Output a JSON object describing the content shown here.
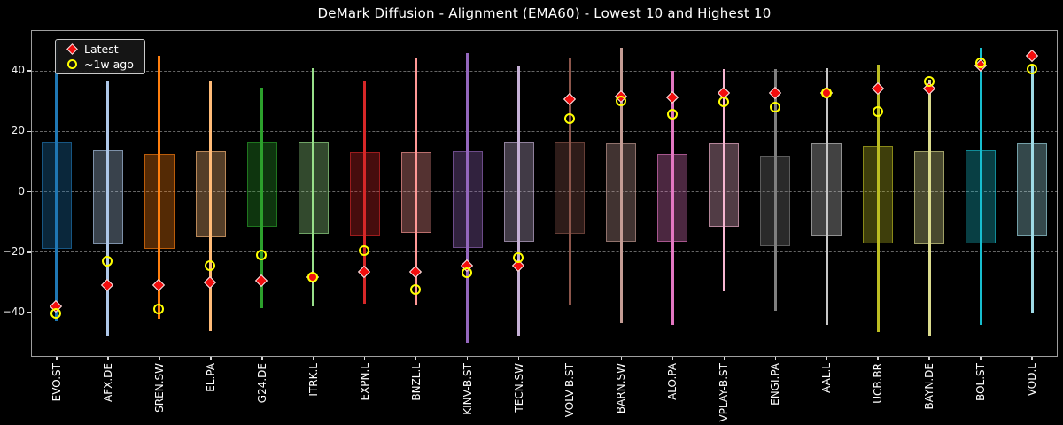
{
  "chart_data": {
    "type": "bar",
    "subtype": "range-box-whisker-with-point-markers",
    "title": "DeMark Diffusion - Alignment (EMA60) - Lowest 10 and Highest 10",
    "categories": [
      "EVO.ST",
      "AFX.DE",
      "SREN.SW",
      "EL.PA",
      "G24.DE",
      "ITRK.L",
      "EXPN.L",
      "BNZL.L",
      "KINV-B.ST",
      "TECN.SW",
      "VOLV-B.ST",
      "BARN.SW",
      "ALO.PA",
      "VPLAY-B.ST",
      "ENGI.PA",
      "AAL.L",
      "UCB.BR",
      "BAYN.DE",
      "BOL.ST",
      "VOD.L"
    ],
    "series": [
      {
        "name": "whisker_high",
        "values": [
          50,
          36.5,
          45,
          36.5,
          34.5,
          41,
          36.5,
          44,
          46,
          41.5,
          44.5,
          47.5,
          40,
          40.5,
          40.5,
          41,
          42,
          37,
          47.5,
          42
        ]
      },
      {
        "name": "whisker_low",
        "values": [
          -42.5,
          -47.5,
          -42,
          -46,
          -38.5,
          -38,
          -37,
          -37.5,
          -50,
          -48,
          -37.5,
          -43.5,
          -44,
          -33,
          -39.5,
          -44,
          -46.5,
          -47.5,
          -44,
          -40
        ]
      },
      {
        "name": "box_top",
        "values": [
          16.5,
          14,
          12.5,
          13.5,
          16.5,
          16.5,
          13,
          13,
          13.5,
          16.5,
          16.5,
          16,
          12.5,
          16,
          12,
          16,
          15,
          13.5,
          14,
          16
        ]
      },
      {
        "name": "box_bottom",
        "values": [
          -19,
          -17.5,
          -19,
          -15,
          -11.5,
          -14,
          -14.5,
          -13.5,
          -18.5,
          -16.5,
          -14,
          -16.5,
          -16.5,
          -11.5,
          -18,
          -14.5,
          -17,
          -17.5,
          -17,
          -14.5
        ]
      },
      {
        "name": "latest",
        "values": [
          -38,
          -31,
          -31,
          -30,
          -29.5,
          -28.5,
          -26.5,
          -26.5,
          -24.5,
          -24.5,
          30.5,
          31.5,
          31,
          32.5,
          32.5,
          32.5,
          34,
          34,
          41.5,
          45
        ]
      },
      {
        "name": "week_ago",
        "values": [
          -40.5,
          -23,
          -39,
          -24.5,
          -21,
          -28.5,
          -19.5,
          -32.5,
          -27,
          -22,
          24,
          30,
          25.5,
          29.5,
          28,
          32.5,
          26.5,
          36.5,
          42.5,
          40.5
        ]
      }
    ],
    "category_colors": [
      "#1f77b4",
      "#aec7e8",
      "#ff7f0e",
      "#ffbb78",
      "#2ca02c",
      "#98df8a",
      "#d62728",
      "#ff9896",
      "#9467bd",
      "#c5b0d5",
      "#8c564b",
      "#c49c94",
      "#e377c2",
      "#f7b6d2",
      "#7f7f7f",
      "#c7c7c7",
      "#bcbd22",
      "#dbdb8d",
      "#17becf",
      "#9edae5"
    ],
    "y_ticks": [
      40,
      20,
      0,
      -20,
      -40
    ],
    "ylim": [
      -54.6,
      53.5
    ],
    "grid": "horizontal-dashed",
    "legend_position": "upper-left",
    "legend": {
      "entries": [
        {
          "label": "Latest",
          "marker": "diamond",
          "color": "#f20d0d"
        },
        {
          "label": "~1w ago",
          "marker": "open-circle",
          "color": "#ffff00"
        }
      ]
    },
    "background_color": "#000000",
    "text_color": "#ffffff"
  }
}
